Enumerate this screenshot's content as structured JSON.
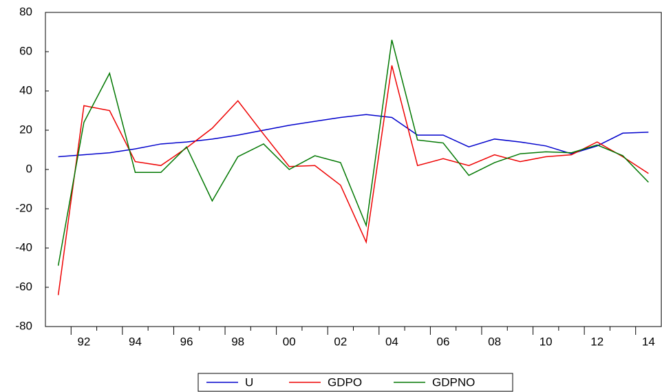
{
  "chart_data": {
    "type": "line",
    "categories": [
      null,
      "92",
      null,
      "94",
      null,
      "96",
      null,
      "98",
      null,
      "00",
      null,
      "02",
      null,
      "04",
      null,
      "06",
      null,
      "08",
      null,
      "10",
      null,
      "12",
      null,
      "14"
    ],
    "series": [
      {
        "name": "U",
        "color": "#0000cc",
        "values": [
          6.5,
          7.5,
          8.5,
          10.5,
          13,
          14,
          15.5,
          17.5,
          20,
          22.5,
          24.5,
          26.5,
          28,
          26.5,
          17.5,
          17.5,
          11.5,
          15.5,
          14,
          12,
          8,
          12,
          18.5,
          19
        ]
      },
      {
        "name": "GDPO",
        "color": "#ee0000",
        "values": [
          -64,
          32.5,
          30,
          4,
          2,
          11,
          21,
          35,
          18,
          1.5,
          2,
          -8,
          -37,
          53,
          2,
          5.5,
          2,
          7.5,
          4,
          6.5,
          7.5,
          14,
          6.5,
          -2
        ]
      },
      {
        "name": "GDPNO",
        "color": "#007700",
        "values": [
          -49,
          24,
          49,
          -1.5,
          -1.5,
          11.5,
          -16,
          6.5,
          13,
          0,
          7,
          3.5,
          -28.5,
          66,
          15,
          13.5,
          -3,
          3.5,
          8,
          9,
          8.5,
          12.5,
          7,
          -6.5
        ]
      }
    ],
    "ylim": [
      -80,
      80
    ],
    "yticks": [
      -80,
      -60,
      -40,
      -20,
      0,
      20,
      40,
      60,
      80
    ],
    "grid": false
  }
}
